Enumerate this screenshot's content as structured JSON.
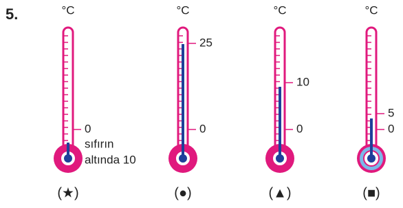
{
  "question_number": "5.",
  "thermometers": [
    {
      "unit": "°C",
      "marks": [
        "0"
      ],
      "note_lines": [
        "sıfırın",
        "altında 10"
      ],
      "symbol": "(★)"
    },
    {
      "unit": "°C",
      "marks": [
        "25",
        "0"
      ],
      "symbol": "(●)"
    },
    {
      "unit": "°C",
      "marks": [
        "10",
        "0"
      ],
      "symbol": "(▲)"
    },
    {
      "unit": "°C",
      "marks": [
        "5",
        "0"
      ],
      "symbol": "(■)"
    }
  ]
}
